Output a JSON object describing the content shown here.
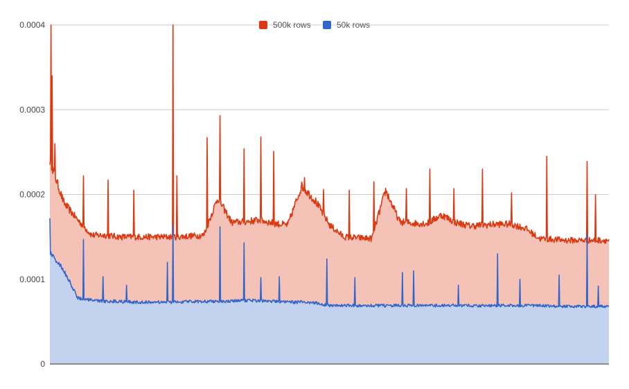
{
  "chart_data": {
    "type": "area",
    "title": "",
    "xlabel": "",
    "ylabel": "",
    "ylim": [
      0,
      0.0004
    ],
    "yticks": [
      "0",
      "0.0001",
      "0.0002",
      "0.0003",
      "0.0004"
    ],
    "ytick_values": [
      0,
      0.0001,
      0.0002,
      0.0003,
      0.0004
    ],
    "grid": true,
    "legend": "top-center",
    "x": [
      0,
      25,
      50,
      75,
      100,
      125,
      150,
      175,
      200,
      225,
      250,
      275,
      300,
      325,
      350,
      375,
      400,
      425,
      450,
      475,
      500,
      525,
      550,
      575,
      600,
      625,
      650,
      675,
      700,
      725,
      750,
      775,
      800,
      825,
      850,
      875,
      900,
      925,
      950,
      975,
      999
    ],
    "series": [
      {
        "name": "500k rows",
        "color": "#dc3912",
        "fill": "#f4c2b6",
        "values": [
          0.00024,
          0.00019,
          0.00017,
          0.000152,
          0.000152,
          0.00015,
          0.00015,
          0.00015,
          0.00015,
          0.00015,
          0.000151,
          0.000152,
          0.000196,
          0.000167,
          0.000168,
          0.00017,
          0.000166,
          0.000164,
          0.00021,
          0.000192,
          0.000164,
          0.00015,
          0.000149,
          0.000148,
          0.000205,
          0.000168,
          0.000166,
          0.000166,
          0.000176,
          0.000167,
          0.000163,
          0.000164,
          0.000165,
          0.000165,
          0.00016,
          0.000148,
          0.000147,
          0.000146,
          0.000146,
          0.000146,
          0.000146
        ],
        "spikes": [
          [
            2,
            0.0004
          ],
          [
            4,
            0.00034
          ],
          [
            9,
            0.00026
          ],
          [
            60,
            0.000222
          ],
          [
            104,
            0.000217
          ],
          [
            150,
            0.000205
          ],
          [
            220,
            0.0004
          ],
          [
            227,
            0.000222
          ],
          [
            281,
            0.000267
          ],
          [
            304,
            0.000293
          ],
          [
            347,
            0.000254
          ],
          [
            377,
            0.000268
          ],
          [
            400,
            0.000251
          ],
          [
            455,
            0.00022
          ],
          [
            489,
            0.000206
          ],
          [
            535,
            0.000205
          ],
          [
            579,
            0.000215
          ],
          [
            637,
            0.000207
          ],
          [
            679,
            0.00023
          ],
          [
            722,
            0.000207
          ],
          [
            773,
            0.00023
          ],
          [
            825,
            0.000202
          ],
          [
            888,
            0.000245
          ],
          [
            960,
            0.000239
          ],
          [
            975,
            0.0002
          ]
        ]
      },
      {
        "name": "50k rows",
        "color": "#3366cc",
        "fill": "#c3d2ef",
        "values": [
          0.000132,
          0.00011,
          7.8e-05,
          7.5e-05,
          7.4e-05,
          7.4e-05,
          7.3e-05,
          7.3e-05,
          7.3e-05,
          7.3e-05,
          7.4e-05,
          7.4e-05,
          7.4e-05,
          7.4e-05,
          7.5e-05,
          7.5e-05,
          7.4e-05,
          7.3e-05,
          7.3e-05,
          7.2e-05,
          6.9e-05,
          6.9e-05,
          6.9e-05,
          6.9e-05,
          6.9e-05,
          6.9e-05,
          6.9e-05,
          6.9e-05,
          6.9e-05,
          6.9e-05,
          6.9e-05,
          6.9e-05,
          6.9e-05,
          6.9e-05,
          6.9e-05,
          6.9e-05,
          6.8e-05,
          6.8e-05,
          6.8e-05,
          6.8e-05,
          6.8e-05
        ],
        "spikes": [
          [
            0,
            0.000172
          ],
          [
            60,
            0.000147
          ],
          [
            95,
            0.000103
          ],
          [
            137,
            9.3e-05
          ],
          [
            210,
            0.00012
          ],
          [
            220,
            0.000164
          ],
          [
            304,
            0.000162
          ],
          [
            347,
            0.000143
          ],
          [
            377,
            0.000102
          ],
          [
            410,
            0.000103
          ],
          [
            495,
            0.000124
          ],
          [
            545,
            0.000102
          ],
          [
            630,
            0.000108
          ],
          [
            650,
            0.00011
          ],
          [
            730,
            9.3e-05
          ],
          [
            800,
            0.00013
          ],
          [
            840,
            0.0001
          ],
          [
            910,
            0.000105
          ],
          [
            960,
            0.000153
          ],
          [
            980,
            9.2e-05
          ]
        ]
      }
    ]
  }
}
